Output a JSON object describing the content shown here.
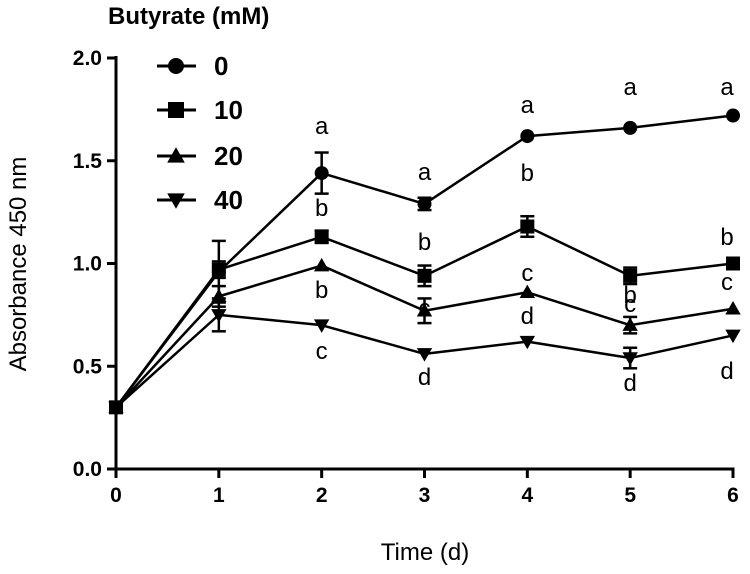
{
  "chart_data": {
    "type": "line",
    "title": "",
    "xlabel": "Time (d)",
    "ylabel": "Absorbance 450 nm",
    "x": [
      0,
      1,
      2,
      3,
      4,
      5,
      6
    ],
    "xticks": [
      "0",
      "1",
      "2",
      "3",
      "4",
      "5",
      "6"
    ],
    "yticks": [
      "0.0",
      "0.5",
      "1.0",
      "1.5",
      "2.0"
    ],
    "xlim": [
      0,
      6
    ],
    "ylim": [
      0,
      2.0
    ],
    "legend_title": "Butyrate (mM)",
    "legend_position": "top-left",
    "series": [
      {
        "name": "0",
        "marker": "circle",
        "values": [
          0.3,
          0.96,
          1.44,
          1.29,
          1.62,
          1.66,
          1.72
        ],
        "errors": [
          0.02,
          0.15,
          0.1,
          0.03,
          0.02,
          0.02,
          0.02
        ]
      },
      {
        "name": "10",
        "marker": "square",
        "values": [
          0.3,
          0.97,
          1.13,
          0.94,
          1.18,
          0.94,
          1.0
        ],
        "errors": [
          0.02,
          0.04,
          0.03,
          0.05,
          0.05,
          0.04,
          0.02
        ]
      },
      {
        "name": "20",
        "marker": "triangle-up",
        "values": [
          0.3,
          0.84,
          0.99,
          0.77,
          0.86,
          0.7,
          0.78
        ],
        "errors": [
          0.02,
          0.05,
          0.02,
          0.06,
          0.02,
          0.04,
          0.02
        ]
      },
      {
        "name": "40",
        "marker": "triangle-down",
        "values": [
          0.3,
          0.75,
          0.7,
          0.56,
          0.62,
          0.54,
          0.65
        ],
        "errors": [
          0.02,
          0.08,
          0.02,
          0.02,
          0.02,
          0.05,
          0.02
        ]
      }
    ],
    "annotations": [
      {
        "x": 2,
        "series": "0",
        "text": "a"
      },
      {
        "x": 2,
        "series": "10",
        "text": "b"
      },
      {
        "x": 2,
        "series": "20",
        "text": "b"
      },
      {
        "x": 2,
        "series": "40",
        "text": "c"
      },
      {
        "x": 3,
        "series": "0",
        "text": "a"
      },
      {
        "x": 3,
        "series": "10",
        "text": "b"
      },
      {
        "x": 3,
        "series": "20",
        "text": "c"
      },
      {
        "x": 3,
        "series": "40",
        "text": "d"
      },
      {
        "x": 4,
        "series": "0",
        "text": "a"
      },
      {
        "x": 4,
        "series": "10",
        "text": "b"
      },
      {
        "x": 4,
        "series": "20",
        "text": "c"
      },
      {
        "x": 4,
        "series": "40",
        "text": "d"
      },
      {
        "x": 5,
        "series": "0",
        "text": "a"
      },
      {
        "x": 5,
        "series": "10",
        "text": "b"
      },
      {
        "x": 5,
        "series": "20",
        "text": "c"
      },
      {
        "x": 5,
        "series": "40",
        "text": "d"
      },
      {
        "x": 6,
        "series": "0",
        "text": "a"
      },
      {
        "x": 6,
        "series": "10",
        "text": "b"
      },
      {
        "x": 6,
        "series": "20",
        "text": "c"
      },
      {
        "x": 6,
        "series": "40",
        "text": "d"
      }
    ]
  }
}
